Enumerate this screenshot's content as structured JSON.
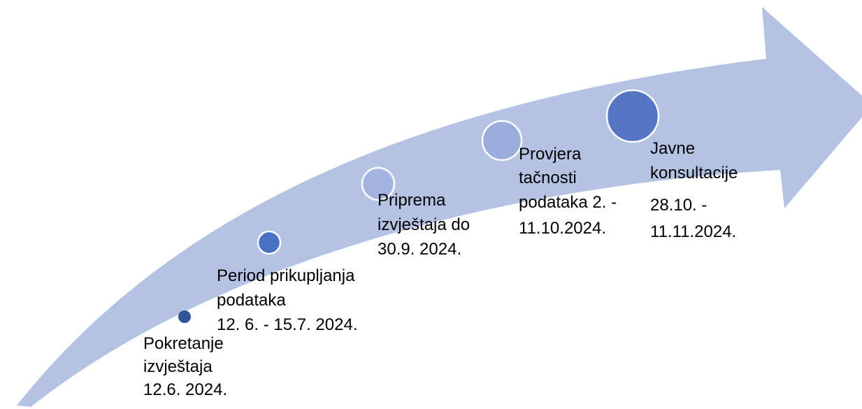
{
  "steps": [
    {
      "lines": [
        "Pokretanje",
        "izvještaja",
        "12.6. 2024."
      ]
    },
    {
      "lines": [
        "Period prikupljanja",
        "podataka",
        "12. 6. - 15.7. 2024."
      ]
    },
    {
      "lines": [
        "Priprema",
        "izvještaja do",
        "30.9. 2024."
      ]
    },
    {
      "lines": [
        "Provjera",
        "tačnosti",
        "podataka 2. -",
        "11.10.2024."
      ]
    },
    {
      "lines": [
        "Javne",
        "konsultacije",
        "28.10. -",
        "11.11.2024."
      ]
    }
  ]
}
